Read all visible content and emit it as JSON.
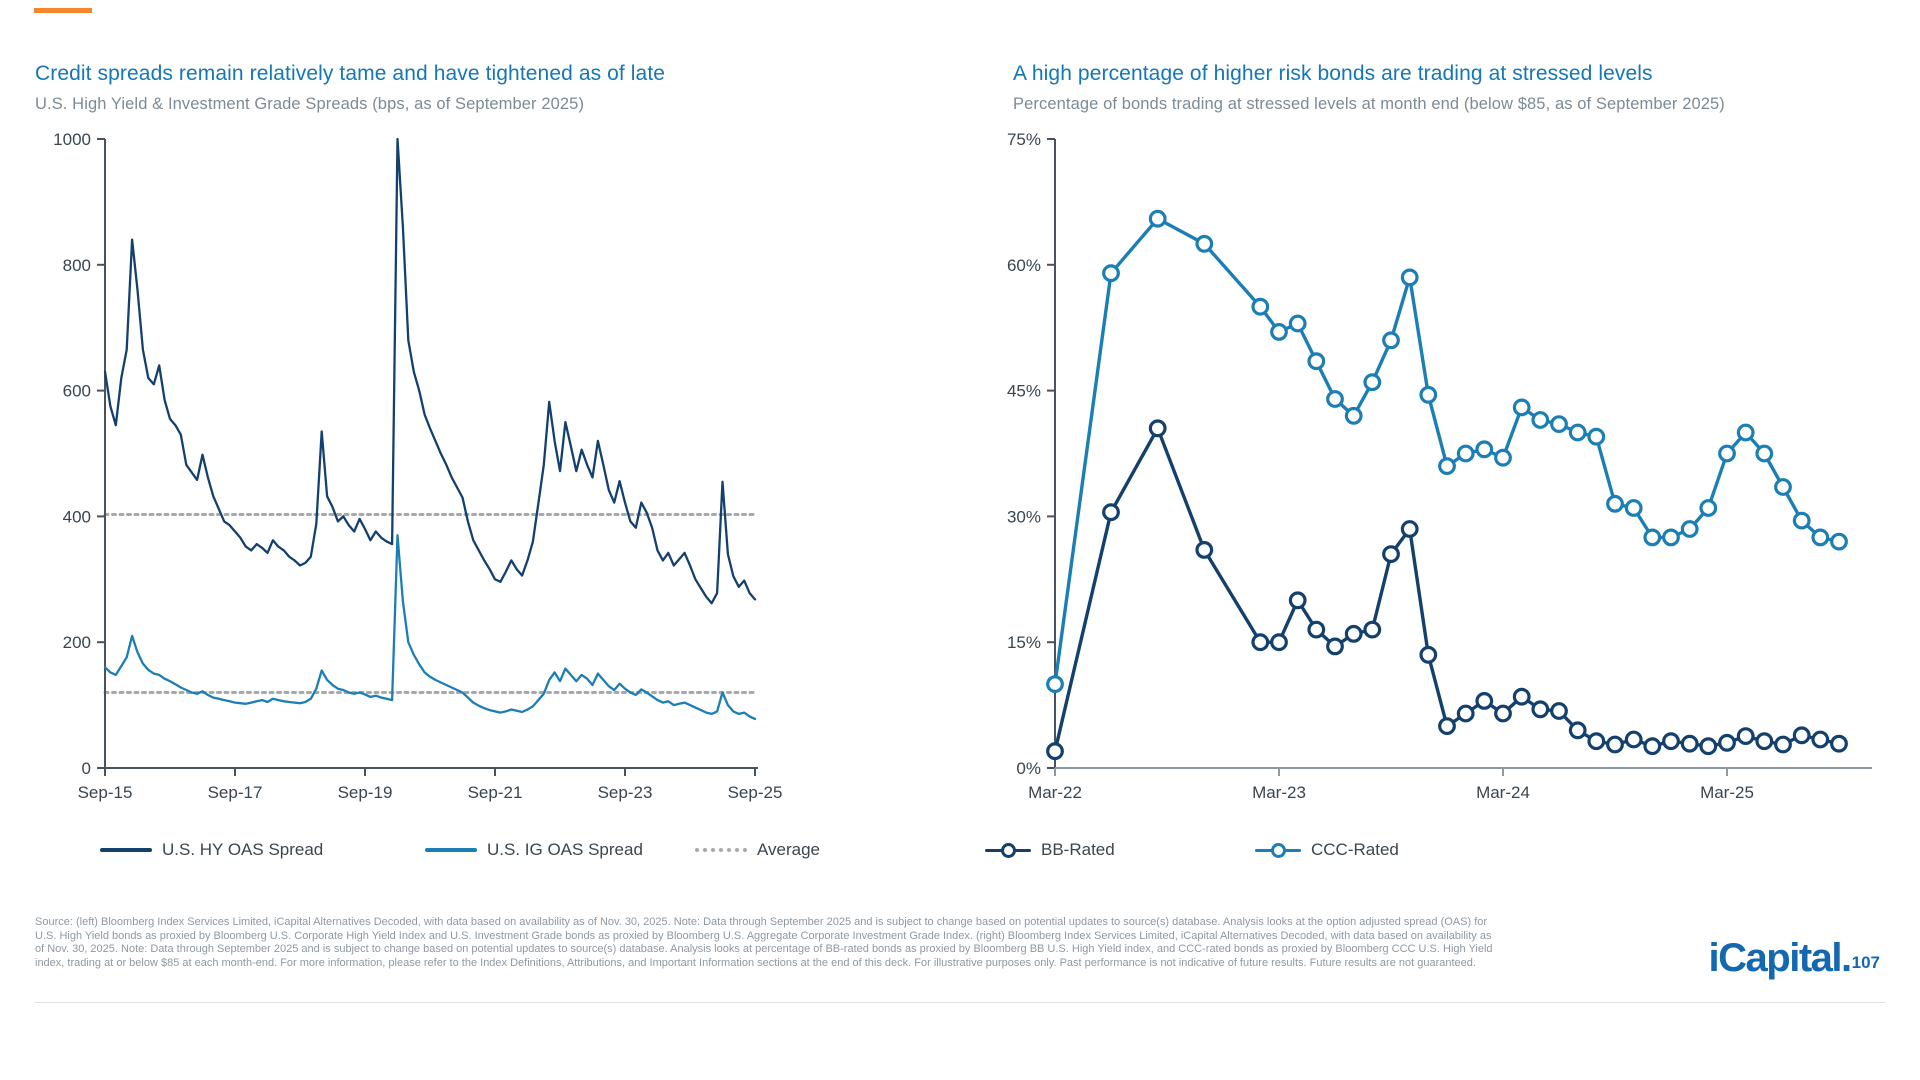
{
  "accent_color": "#F6862B",
  "footer": {
    "lines": [
      "Source: (left) Bloomberg Index Services Limited, iCapital Alternatives Decoded, with data based on availability as of Nov. 30, 2025. Note: Data through September 2025 and is subject to change based on potential updates to source(s) database. Analysis looks at the option adjusted spread (OAS) for",
      "U.S. High Yield bonds as proxied by Bloomberg U.S. Corporate High Yield Index and U.S. Investment Grade bonds as proxied by Bloomberg U.S. Aggregate Corporate Investment Grade Index. (right) Bloomberg Index Services Limited, iCapital Alternatives Decoded, with data based on availability as",
      "of Nov. 30, 2025. Note: Data through September 2025 and is subject to change based on potential updates to source(s) database. Analysis looks at percentage of BB-rated bonds as proxied by Bloomberg BB U.S. High Yield index, and CCC-rated bonds as proxied by Bloomberg CCC U.S. High Yield",
      "index, trading at or below $85 at each month-end. For more information, please refer to the Index Definitions, Attributions, and Important Information sections at the end of this deck. For illustrative purposes only. Past performance is not indicative of future results. Future results are not guaranteed."
    ]
  },
  "logo": {
    "wordmark": "iCapital.",
    "page_number": "107"
  },
  "chart_data": [
    {
      "id": "credit-spreads",
      "type": "line",
      "title": "Credit spreads remain relatively tame and have tightened as of late",
      "subtitle": "U.S. High Yield & Investment Grade Spreads (bps, as of September 2025)",
      "ylabel": "bps",
      "ylim": [
        0,
        1000
      ],
      "ytick_values": [
        0,
        200,
        400,
        600,
        800,
        1000
      ],
      "ytick_labels": [
        "0",
        "200",
        "400",
        "600",
        "800",
        "1000"
      ],
      "xtick_labels": [
        "Sep-15",
        "Sep-17",
        "Sep-19",
        "Sep-21",
        "Sep-23",
        "Sep-25"
      ],
      "xtick_months": [
        0,
        24,
        48,
        72,
        96,
        120
      ],
      "x_unit": "months since Sep-2015",
      "grid": false,
      "legend_position": "bottom",
      "average_lines": [
        {
          "label": "Average",
          "value": 403,
          "color": "#A6AAAD"
        },
        {
          "label": "Average",
          "value": 120,
          "color": "#A6AAAD"
        }
      ],
      "series": [
        {
          "name": "U.S. HY OAS Spread",
          "color": "#14406E",
          "values": [
            630,
            575,
            545,
            620,
            665,
            840,
            760,
            665,
            620,
            610,
            640,
            585,
            555,
            545,
            530,
            482,
            470,
            458,
            498,
            462,
            432,
            412,
            392,
            386,
            376,
            366,
            352,
            346,
            356,
            350,
            342,
            362,
            352,
            346,
            336,
            330,
            322,
            326,
            336,
            388,
            535,
            432,
            415,
            392,
            400,
            386,
            376,
            396,
            380,
            362,
            376,
            366,
            360,
            356,
            1000,
            860,
            680,
            630,
            600,
            562,
            540,
            520,
            500,
            482,
            462,
            446,
            430,
            392,
            362,
            346,
            330,
            316,
            300,
            296,
            312,
            330,
            316,
            306,
            330,
            360,
            420,
            482,
            582,
            520,
            472,
            550,
            512,
            472,
            506,
            482,
            462,
            520,
            482,
            442,
            422,
            456,
            422,
            392,
            382,
            422,
            406,
            382,
            346,
            330,
            342,
            322,
            332,
            342,
            322,
            300,
            286,
            272,
            262,
            278,
            455,
            340,
            305,
            288,
            298,
            278,
            268
          ]
        },
        {
          "name": "U.S. IG OAS Spread",
          "color": "#1B7FB5",
          "values": [
            160,
            152,
            148,
            162,
            176,
            210,
            184,
            166,
            156,
            150,
            148,
            142,
            138,
            133,
            128,
            124,
            120,
            118,
            122,
            116,
            112,
            110,
            108,
            106,
            104,
            103,
            102,
            104,
            106,
            108,
            105,
            110,
            108,
            106,
            105,
            104,
            103,
            105,
            110,
            126,
            155,
            140,
            132,
            126,
            124,
            120,
            118,
            120,
            117,
            113,
            115,
            112,
            110,
            108,
            370,
            265,
            200,
            180,
            165,
            152,
            145,
            140,
            136,
            132,
            128,
            124,
            120,
            112,
            104,
            99,
            95,
            92,
            90,
            88,
            90,
            93,
            91,
            89,
            93,
            98,
            108,
            118,
            140,
            152,
            138,
            158,
            148,
            138,
            148,
            142,
            132,
            150,
            140,
            130,
            124,
            134,
            126,
            120,
            116,
            125,
            120,
            114,
            108,
            104,
            106,
            100,
            102,
            104,
            100,
            96,
            92,
            88,
            86,
            90,
            120,
            100,
            90,
            86,
            88,
            82,
            78
          ]
        }
      ]
    },
    {
      "id": "stressed-bonds",
      "type": "line",
      "title": "A high percentage of higher risk bonds are trading at stressed levels",
      "subtitle": "Percentage of bonds trading at stressed levels at month end (below $85, as of September 2025)",
      "ylabel": "% of bonds",
      "ylim": [
        0,
        75
      ],
      "ytick_values": [
        0,
        15,
        30,
        45,
        60,
        75
      ],
      "ytick_labels": [
        "0%",
        "15%",
        "30%",
        "45%",
        "60%",
        "75%"
      ],
      "xtick_labels": [
        "Mar-22",
        "Mar-23",
        "Mar-24",
        "Mar-25"
      ],
      "xtick_months": [
        0,
        12,
        24,
        36
      ],
      "x_unit": "months since Mar-2022",
      "grid": false,
      "legend_position": "bottom",
      "marker": "circle",
      "series": [
        {
          "name": "BB-Rated",
          "color": "#14406E",
          "marker": "circle",
          "points": [
            [
              0,
              2
            ],
            [
              3,
              30.5
            ],
            [
              5.5,
              40.5
            ],
            [
              8,
              26
            ],
            [
              11,
              15
            ],
            [
              12,
              15
            ],
            [
              13,
              20
            ],
            [
              14,
              16.5
            ],
            [
              15,
              14.5
            ],
            [
              16,
              16
            ],
            [
              17,
              16.5
            ],
            [
              18,
              25.5
            ],
            [
              19,
              28.5
            ],
            [
              20,
              13.5
            ],
            [
              21,
              5
            ],
            [
              22,
              6.5
            ],
            [
              23,
              8
            ],
            [
              24,
              6.5
            ],
            [
              25,
              8.5
            ],
            [
              26,
              7
            ],
            [
              27,
              6.8
            ],
            [
              28,
              4.5
            ],
            [
              29,
              3.2
            ],
            [
              30,
              2.8
            ],
            [
              31,
              3.4
            ],
            [
              32,
              2.6
            ],
            [
              33,
              3.2
            ],
            [
              34,
              2.9
            ],
            [
              35,
              2.6
            ],
            [
              36,
              3
            ],
            [
              37,
              3.8
            ],
            [
              38,
              3.2
            ],
            [
              39,
              2.8
            ],
            [
              40,
              3.9
            ],
            [
              41,
              3.4
            ],
            [
              42,
              2.9
            ]
          ]
        },
        {
          "name": "CCC-Rated",
          "color": "#1B7FB5",
          "marker": "circle",
          "points": [
            [
              0,
              10
            ],
            [
              3,
              59
            ],
            [
              5.5,
              65.5
            ],
            [
              8,
              62.5
            ],
            [
              11,
              55
            ],
            [
              12,
              52
            ],
            [
              13,
              53
            ],
            [
              14,
              48.5
            ],
            [
              15,
              44
            ],
            [
              16,
              42
            ],
            [
              17,
              46
            ],
            [
              18,
              51
            ],
            [
              19,
              58.5
            ],
            [
              20,
              44.5
            ],
            [
              21,
              36
            ],
            [
              22,
              37.5
            ],
            [
              23,
              38
            ],
            [
              24,
              37
            ],
            [
              25,
              43
            ],
            [
              26,
              41.5
            ],
            [
              27,
              41
            ],
            [
              28,
              40
            ],
            [
              29,
              39.5
            ],
            [
              30,
              31.5
            ],
            [
              31,
              31
            ],
            [
              32,
              27.5
            ],
            [
              33,
              27.5
            ],
            [
              34,
              28.5
            ],
            [
              35,
              31
            ],
            [
              36,
              37.5
            ],
            [
              37,
              40
            ],
            [
              38,
              37.5
            ],
            [
              39,
              33.5
            ],
            [
              40,
              29.5
            ],
            [
              41,
              27.5
            ],
            [
              42,
              27
            ]
          ]
        }
      ]
    }
  ]
}
